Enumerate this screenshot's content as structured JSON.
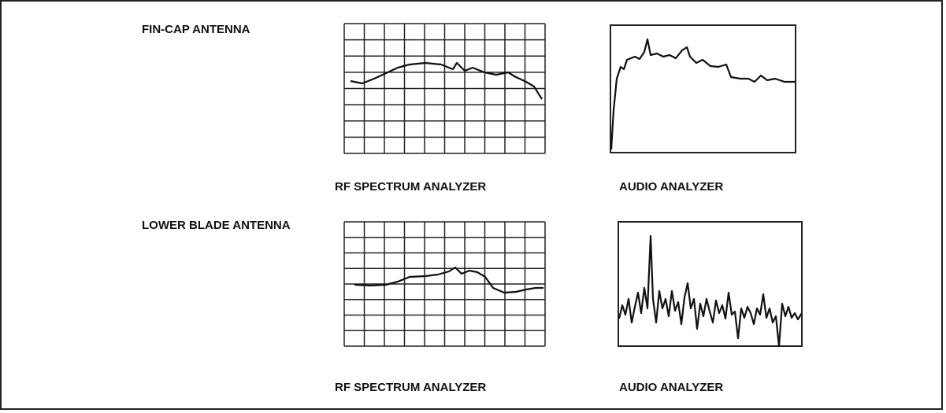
{
  "rows": [
    {
      "label": "FIN-CAP ANTENNA",
      "panels": [
        "RF SPECTRUM ANALYZER",
        "AUDIO ANALYZER"
      ]
    },
    {
      "label": "LOWER BLADE ANTENNA",
      "panels": [
        "RF SPECTRUM ANALYZER",
        "AUDIO ANALYZER"
      ]
    }
  ]
}
